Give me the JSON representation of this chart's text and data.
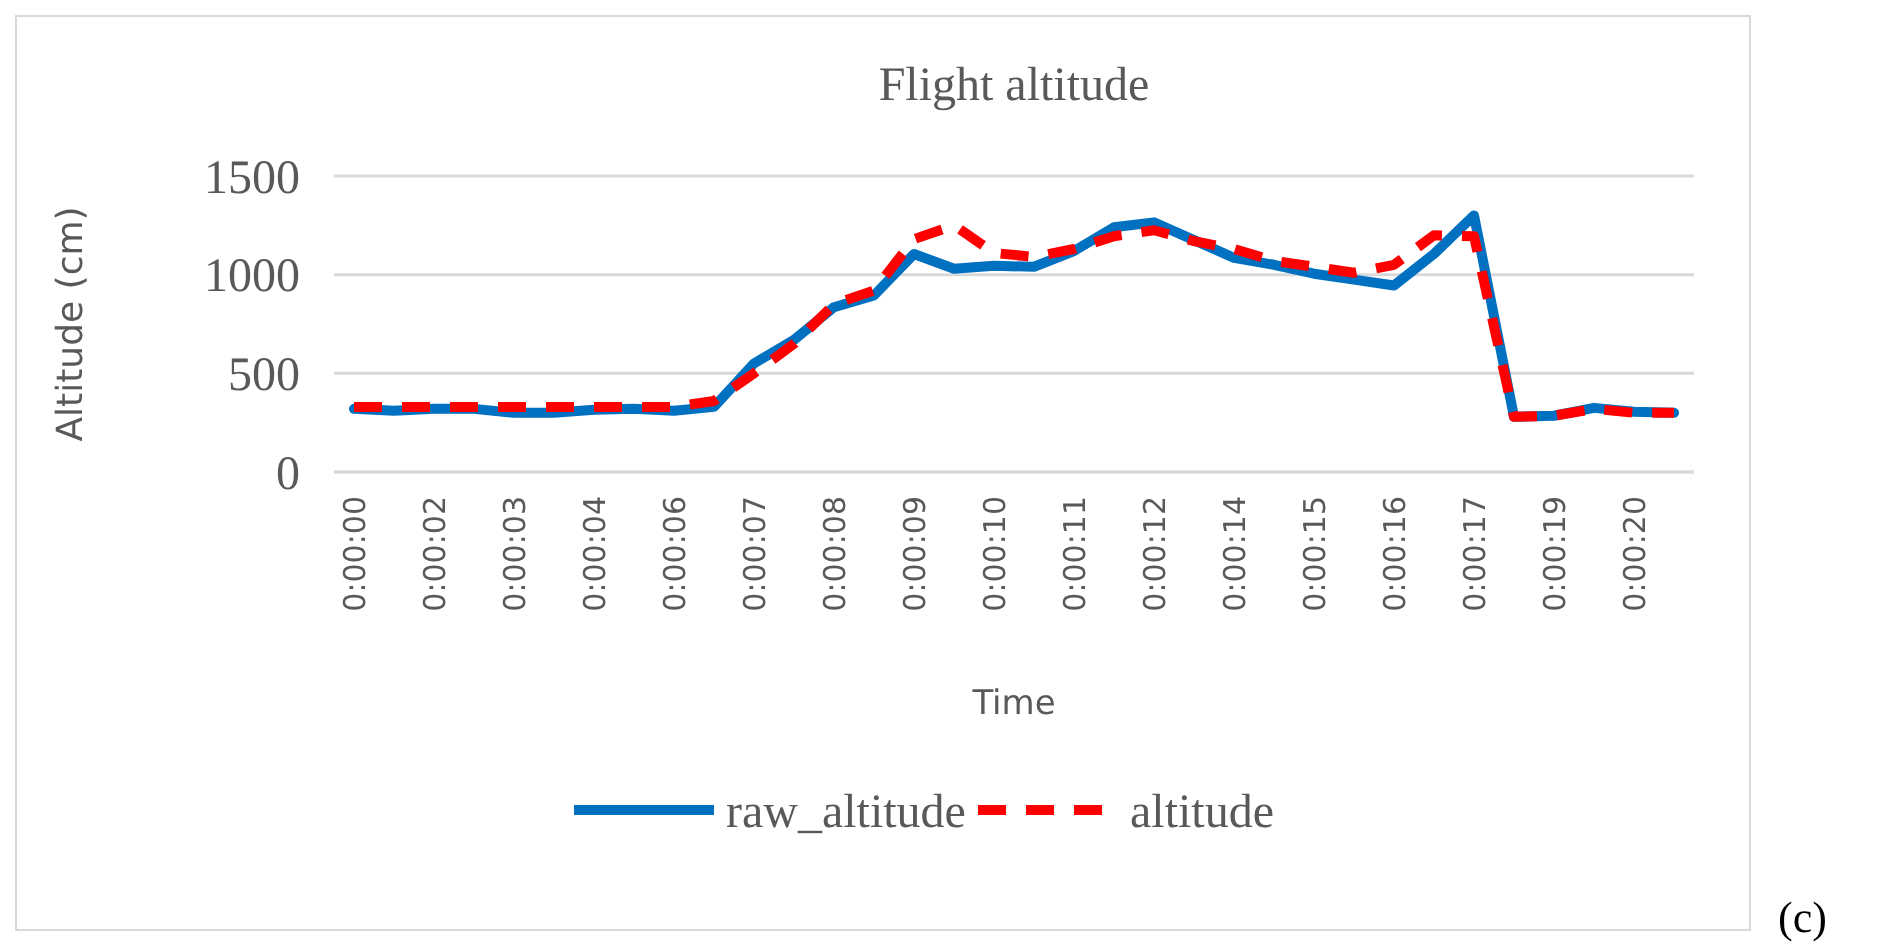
{
  "chart_data": {
    "type": "line",
    "title": "Flight altitude",
    "xlabel": "Time",
    "ylabel": "Altitude (cm)",
    "categories": [
      "0:00:00",
      null,
      "0:00:02",
      null,
      "0:00:03",
      null,
      "0:00:04",
      null,
      "0:00:06",
      null,
      "0:00:07",
      null,
      "0:00:08",
      null,
      "0:00:09",
      null,
      "0:00:10",
      null,
      "0:00:11",
      null,
      "0:00:12",
      null,
      "0:00:14",
      null,
      "0:00:15",
      null,
      "0:00:16",
      null,
      "0:00:17",
      null,
      "0:00:19",
      null,
      "0:00:20",
      null
    ],
    "series": [
      {
        "name": "raw_altitude",
        "color": "#0070c0",
        "line_style": "solid",
        "values": [
          320,
          310,
          320,
          320,
          300,
          300,
          315,
          320,
          310,
          330,
          550,
          670,
          835,
          895,
          1105,
          1030,
          1045,
          1040,
          1120,
          1240,
          1265,
          1175,
          1085,
          1050,
          1005,
          975,
          945,
          1105,
          1300,
          280,
          285,
          325,
          305,
          300
        ]
      },
      {
        "name": "altitude",
        "color": "#ff0000",
        "line_style": "dashed",
        "values": [
          330,
          330,
          330,
          330,
          330,
          330,
          330,
          330,
          330,
          360,
          500,
          650,
          850,
          920,
          1180,
          1250,
          1110,
          1090,
          1130,
          1195,
          1225,
          1170,
          1130,
          1070,
          1040,
          1010,
          1050,
          1200,
          1195,
          280,
          285,
          320,
          300,
          300
        ]
      }
    ],
    "ylim": [
      0,
      1500
    ],
    "yticks": [
      0,
      500,
      1000,
      1500
    ],
    "grid": "y",
    "legend": "bottom",
    "marker": "none",
    "annotations": [
      "(c)"
    ]
  }
}
